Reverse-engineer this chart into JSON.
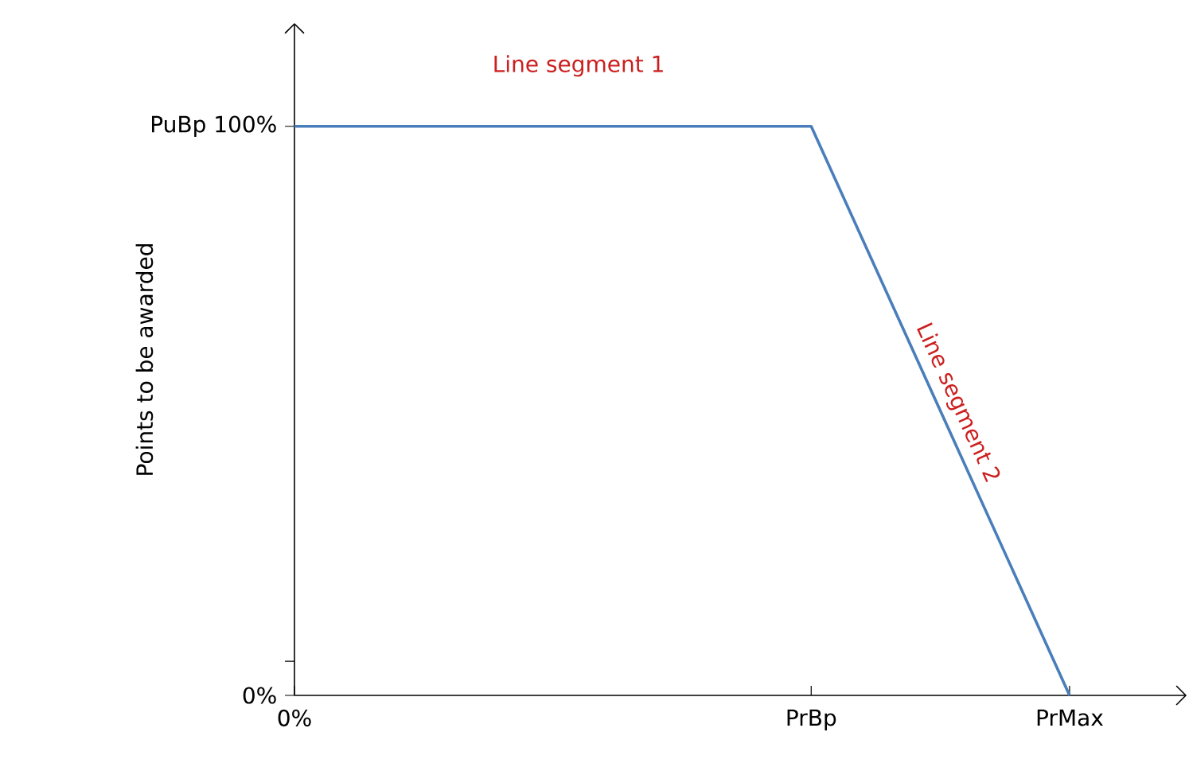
{
  "chart_data": {
    "type": "line",
    "ylabel": "Points to be awarded",
    "categories": [
      "0%",
      null,
      "PrBp",
      "PrMax"
    ],
    "series": [
      {
        "color": "#4a7ebb",
        "values": [
          100,
          100,
          100,
          0
        ]
      }
    ],
    "ylim": [
      0,
      118
    ],
    "yticks": [
      {
        "value": 0,
        "label": "0%"
      },
      {
        "value": 6,
        "label": null
      },
      {
        "value": 100,
        "label": "100%"
      }
    ],
    "annotations": [
      "Line segment 1",
      "Line segment 2",
      "PuBp"
    ],
    "grid": false,
    "marker": "none",
    "line_style": "solid"
  }
}
